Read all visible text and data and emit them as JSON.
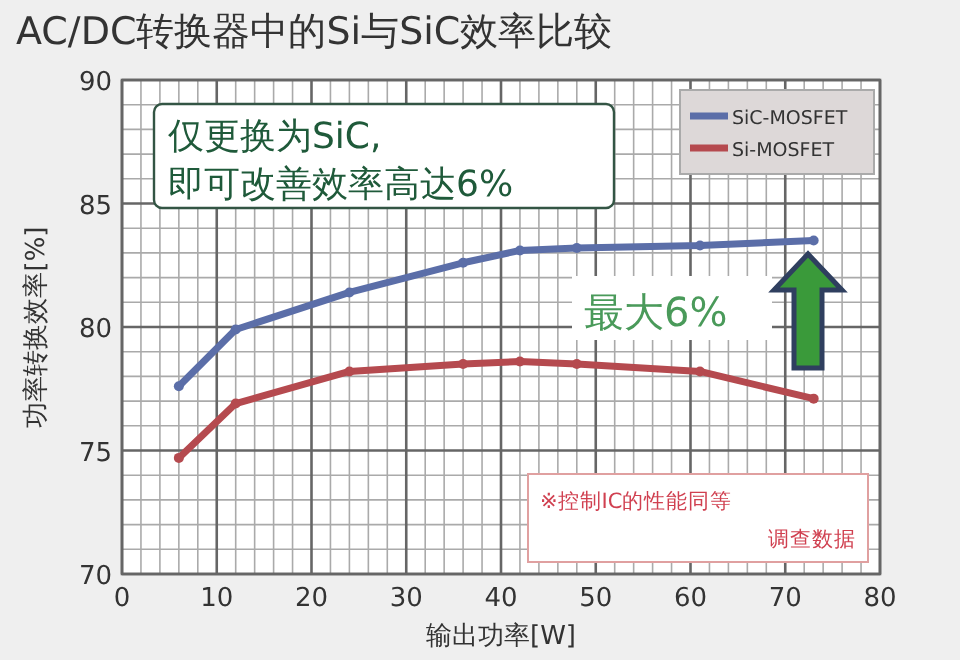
{
  "chart_data": {
    "type": "line",
    "title": "AC/DC转换器中的Si与SiC效率比较",
    "xlabel": "输出功率[W]",
    "ylabel": "功率转换效率[%]",
    "xlim": [
      0,
      80
    ],
    "xticks": [
      0,
      10,
      20,
      30,
      40,
      50,
      60,
      70,
      80
    ],
    "ylim": [
      70,
      90
    ],
    "yticks": [
      70,
      75,
      80,
      85,
      90
    ],
    "grid": true,
    "legend": "top right",
    "marker": "circle",
    "series": [
      {
        "name": "SiC-MOSFET",
        "color": "#5b6ea8",
        "x": [
          6,
          12,
          24,
          36,
          42,
          48,
          61,
          73
        ],
        "values": [
          77.6,
          79.9,
          81.4,
          82.6,
          83.1,
          83.2,
          83.3,
          83.5
        ]
      },
      {
        "name": "Si-MOSFET",
        "color": "#b54a4f",
        "x": [
          6,
          12,
          24,
          36,
          42,
          48,
          61,
          73
        ],
        "values": [
          74.7,
          76.9,
          78.2,
          78.5,
          78.6,
          78.5,
          78.2,
          77.1
        ]
      }
    ],
    "annotations": [
      "仅更换为SiC,",
      "即可改善效率高达6%",
      "最大6%",
      "※控制IC的性能同等",
      "调查数据"
    ]
  }
}
